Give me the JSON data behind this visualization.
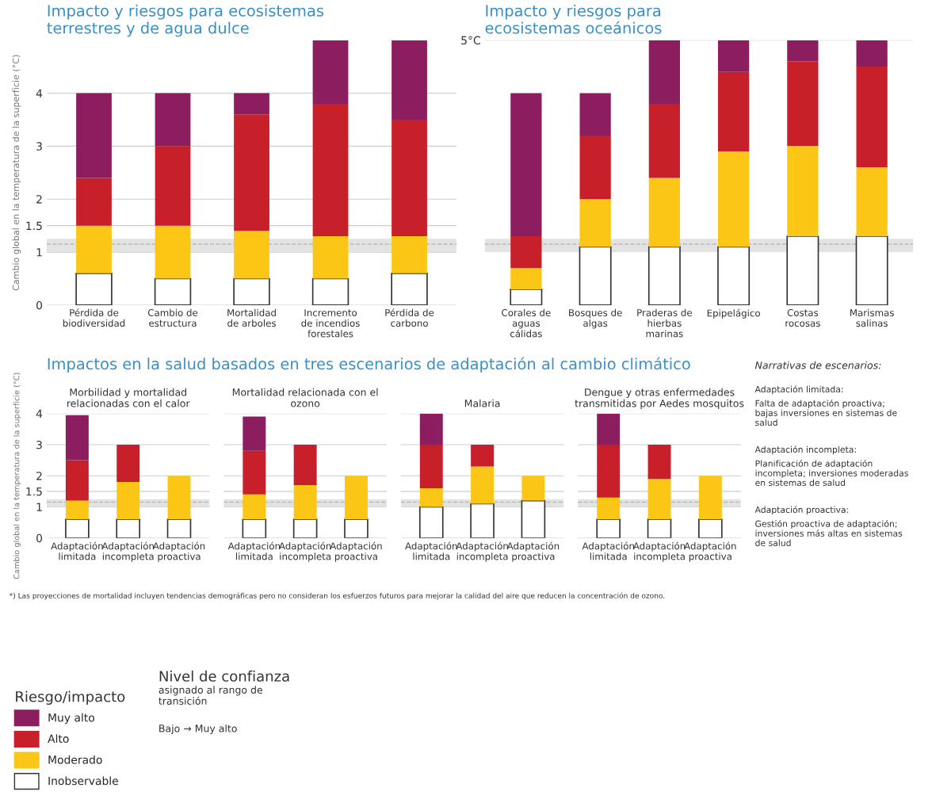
{
  "chart_data": [
    {
      "type": "bar",
      "stacked": true,
      "title": "Impacto y riesgos para ecosistemas\nterrestres y de agua dulce",
      "ylabel": "Cambio global en la temperatura de la superficie (°C)",
      "categories": [
        "Pérdida de\nbiodiversidad",
        "Cambio de\nestructura",
        "Mortalidad\nde arboles",
        "Incremento\nde incendios\nforestales",
        "Pérdida de\ncarbono"
      ],
      "ylim": [
        0,
        5
      ],
      "yticks": [
        0,
        1,
        1.5,
        2,
        3,
        4
      ],
      "grid": "y",
      "legend": "bottom",
      "legend_title": "Riesgo/impacto",
      "bands": [
        {
          "axis": "y",
          "from": 1.0,
          "to": 1.25,
          "color": "#e3e3e3"
        }
      ],
      "ref_lines": [
        {
          "axis": "y",
          "value": 1.15,
          "line_style": "dashed",
          "color": "#bbbbbb"
        }
      ],
      "series": [
        {
          "name": "Inobservable",
          "color": "#ffffff",
          "values": [
            0.6,
            0.5,
            0.5,
            0.5,
            0.6
          ]
        },
        {
          "name": "Moderado",
          "color": "#fbc615",
          "values": [
            0.9,
            1.0,
            0.9,
            0.8,
            0.7
          ]
        },
        {
          "name": "Alto",
          "color": "#c8202a",
          "values": [
            0.9,
            1.5,
            2.2,
            2.5,
            2.2
          ]
        },
        {
          "name": "Muy alto",
          "color": "#8c1d5e",
          "values": [
            1.6,
            1.0,
            0.4,
            1.2,
            1.5
          ]
        }
      ]
    },
    {
      "type": "bar",
      "stacked": true,
      "title": "Impacto y riesgos para\necosistemas oceánicos",
      "categories": [
        "Corales de\naguas\ncálidas",
        "Bosques de\nalgas",
        "Praderas de\nhierbas\nmarinas",
        "Epipelágico",
        "Costas\nrocosas",
        "Marismas\nsalinas"
      ],
      "ylim": [
        0,
        5
      ],
      "yticks": [
        {
          "value": 5,
          "label": "5°C"
        }
      ],
      "grid": "y",
      "bands": [
        {
          "axis": "y",
          "from": 1.0,
          "to": 1.25,
          "color": "#e3e3e3"
        }
      ],
      "ref_lines": [
        {
          "axis": "y",
          "value": 1.15,
          "line_style": "dashed",
          "color": "#bbbbbb"
        }
      ],
      "series": [
        {
          "color": "#ffffff",
          "values": [
            0.3,
            1.1,
            1.1,
            1.1,
            1.3,
            1.3
          ]
        },
        {
          "color": "#fbc615",
          "values": [
            0.4,
            0.9,
            1.3,
            1.8,
            1.7,
            1.3
          ]
        },
        {
          "color": "#c8202a",
          "values": [
            0.6,
            1.2,
            1.4,
            1.5,
            1.6,
            1.9
          ]
        },
        {
          "color": "#8c1d5e",
          "values": [
            2.7,
            0.8,
            1.2,
            0.6,
            0.4,
            0.5
          ]
        }
      ]
    },
    {
      "type": "bar",
      "stacked": true,
      "title": "Impactos en la salud basados en tres escenarios de adaptación al cambio climático",
      "subtitle": "Morbilidad y mortalidad\nrelacionadas con el calor",
      "ylabel": "Cambio global en la temperatura de la superficie (°C)",
      "categories": [
        "Adaptación\nlimitada",
        "Adaptación\nincompleta",
        "Adaptación\nproactiva"
      ],
      "ylim": [
        0,
        4
      ],
      "yticks": [
        0,
        1,
        1.5,
        2,
        3,
        4
      ],
      "grid": "y",
      "annotations": [
        "*) Las proyecciones de mortalidad incluyen tendencias demográficas pero no consideran los esfuerzos futuros para mejorar la calidad del aire que reducen la concentración de ozono."
      ],
      "bands": [
        {
          "axis": "y",
          "from": 1.0,
          "to": 1.25,
          "color": "#e3e3e3"
        }
      ],
      "ref_lines": [
        {
          "axis": "y",
          "value": 1.15,
          "line_style": "dashed",
          "color": "#bbbbbb"
        }
      ],
      "series": [
        {
          "color": "#ffffff",
          "values": [
            0.6,
            0.6,
            0.6
          ]
        },
        {
          "color": "#fbc615",
          "values": [
            0.6,
            1.2,
            1.4
          ]
        },
        {
          "color": "#c8202a",
          "values": [
            1.3,
            1.2,
            0
          ]
        },
        {
          "color": "#8c1d5e",
          "values": [
            1.45,
            0,
            0
          ]
        }
      ]
    },
    {
      "type": "bar",
      "stacked": true,
      "title": "Mortalidad relacionada con el\nozono",
      "categories": [
        "Adaptación\nlimitada",
        "Adaptación\nincompleta",
        "Adaptación\nproactiva"
      ],
      "ylim": [
        0,
        4
      ],
      "yticks": [
        0,
        1,
        1.5,
        2,
        3,
        4
      ],
      "grid": "y",
      "tick_labels": "x",
      "bands": [
        {
          "axis": "y",
          "from": 1.0,
          "to": 1.25,
          "color": "#e3e3e3"
        }
      ],
      "ref_lines": [
        {
          "axis": "y",
          "value": 1.15,
          "line_style": "dashed",
          "color": "#bbbbbb"
        }
      ],
      "series": [
        {
          "color": "#ffffff",
          "values": [
            0.6,
            0.6,
            0.6
          ]
        },
        {
          "color": "#fbc615",
          "values": [
            0.8,
            1.1,
            1.4
          ]
        },
        {
          "color": "#c8202a",
          "values": [
            1.4,
            1.3,
            0
          ]
        },
        {
          "color": "#8c1d5e",
          "values": [
            1.1,
            0,
            0
          ]
        }
      ]
    },
    {
      "type": "bar",
      "stacked": true,
      "title": "Malaria",
      "categories": [
        "Adaptación\nlimitada",
        "Adaptación\nincompleta",
        "Adaptación\nproactiva"
      ],
      "ylim": [
        0,
        4
      ],
      "yticks": [
        0,
        1,
        1.5,
        2,
        3,
        4
      ],
      "grid": "y",
      "tick_labels": "x",
      "bands": [
        {
          "axis": "y",
          "from": 1.0,
          "to": 1.25,
          "color": "#e3e3e3"
        }
      ],
      "ref_lines": [
        {
          "axis": "y",
          "value": 1.15,
          "line_style": "dashed",
          "color": "#bbbbbb"
        }
      ],
      "series": [
        {
          "color": "#ffffff",
          "values": [
            1.0,
            1.1,
            1.2
          ]
        },
        {
          "color": "#fbc615",
          "values": [
            0.6,
            1.2,
            0.8
          ]
        },
        {
          "color": "#c8202a",
          "values": [
            1.4,
            0.7,
            0
          ]
        },
        {
          "color": "#8c1d5e",
          "values": [
            1.0,
            0,
            0
          ]
        }
      ]
    },
    {
      "type": "bar",
      "stacked": true,
      "title": "Dengue y otras enfermedades\ntransmitidas por Aedes mosquitos",
      "categories": [
        "Adaptación\nlimitada",
        "Adaptación\nincompleta",
        "Adaptación\nproactiva"
      ],
      "ylim": [
        0,
        4
      ],
      "yticks": [
        0,
        1,
        1.5,
        2,
        3,
        4
      ],
      "grid": "y",
      "tick_labels": "x",
      "bands": [
        {
          "axis": "y",
          "from": 1.0,
          "to": 1.25,
          "color": "#e3e3e3"
        }
      ],
      "ref_lines": [
        {
          "axis": "y",
          "value": 1.15,
          "line_style": "dashed",
          "color": "#bbbbbb"
        }
      ],
      "series": [
        {
          "color": "#ffffff",
          "values": [
            0.6,
            0.6,
            0.6
          ]
        },
        {
          "color": "#fbc615",
          "values": [
            0.7,
            1.3,
            1.4
          ]
        },
        {
          "color": "#c8202a",
          "values": [
            1.7,
            1.1,
            0
          ]
        },
        {
          "color": "#8c1d5e",
          "values": [
            1.0,
            0,
            0
          ]
        }
      ]
    },
    {
      "type": "other",
      "title": "Narrativas de escenarios:",
      "annotations": [
        "Adaptación limitada:",
        "Falta de adaptación proactiva;\nbajas inversiones en sistemas de\nsalud",
        "Adaptación incompleta:",
        "Planificación de adaptación\nincompleta; inversiones moderadas\nen sistemas de salud",
        "Adaptación proactiva:",
        "Gestión proactiva de adaptación;\ninversiones más altas en sistemas\nde salud"
      ]
    },
    {
      "type": "other",
      "title": "Nivel de confianza",
      "annotations": [
        "asignado al rango de\ntransición",
        "Bajo → Muy alto"
      ]
    }
  ]
}
